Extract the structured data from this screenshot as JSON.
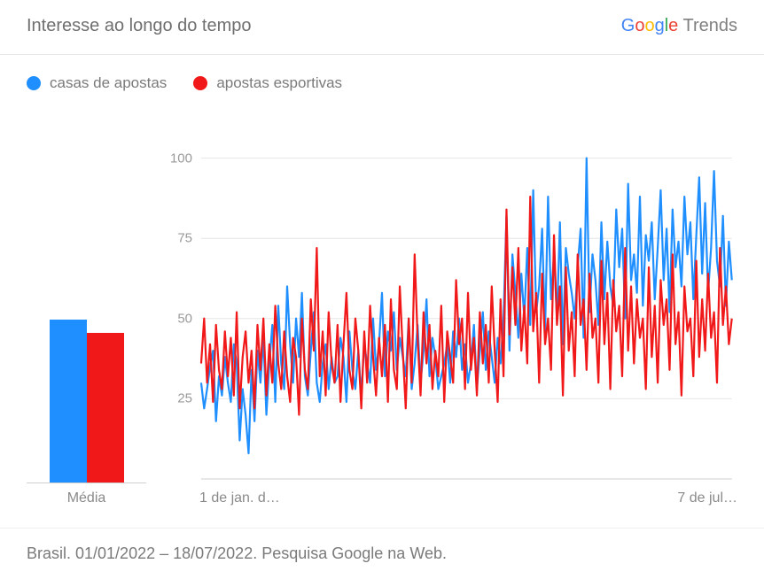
{
  "header": {
    "title": "Interesse ao longo do tempo",
    "brand_trends": "Trends"
  },
  "legend": {
    "items": [
      {
        "label": "casas de apostas",
        "color": "#1f8fff"
      },
      {
        "label": "apostas esportivas",
        "color": "#f01818"
      }
    ]
  },
  "avg_panel": {
    "label": "Média",
    "bars": [
      {
        "value": 49,
        "color": "#1f8fff"
      },
      {
        "value": 45,
        "color": "#f01818"
      }
    ],
    "scale_max": 100
  },
  "chart": {
    "type": "line",
    "ylim": [
      0,
      101
    ],
    "yticks": [
      25,
      50,
      75,
      100
    ],
    "ytick_fontsize": 15,
    "x_labels": [
      "1 de jan. d…",
      "7 de jul…"
    ],
    "x_label_fontsize": 16,
    "grid_color": "#e6e6e6",
    "background_color": "#ffffff",
    "line_width": 2.2,
    "series": [
      {
        "name": "casas de apostas",
        "color": "#1f8fff",
        "values": [
          30,
          22,
          28,
          35,
          40,
          18,
          32,
          26,
          38,
          30,
          24,
          42,
          36,
          12,
          28,
          20,
          8,
          34,
          18,
          40,
          30,
          44,
          20,
          36,
          48,
          24,
          54,
          36,
          28,
          60,
          42,
          30,
          50,
          38,
          58,
          32,
          26,
          40,
          52,
          30,
          24,
          36,
          42,
          28,
          38,
          30,
          32,
          44,
          38,
          24,
          46,
          34,
          28,
          40,
          26,
          42,
          36,
          30,
          50,
          34,
          42,
          58,
          32,
          46,
          40,
          52,
          34,
          44,
          38,
          32,
          50,
          28,
          36,
          48,
          30,
          40,
          56,
          32,
          44,
          38,
          28,
          32,
          36,
          42,
          30,
          46,
          38,
          50,
          34,
          42,
          30,
          36,
          48,
          28,
          40,
          52,
          34,
          46,
          38,
          30,
          44,
          36,
          50,
          82,
          40,
          70,
          58,
          44,
          64,
          50,
          72,
          48,
          90,
          52,
          60,
          78,
          46,
          88,
          56,
          70,
          50,
          80,
          42,
          72,
          64,
          58,
          50,
          66,
          78,
          44,
          100,
          52,
          70,
          62,
          48,
          80,
          56,
          74,
          60,
          54,
          84,
          66,
          78,
          50,
          92,
          62,
          70,
          58,
          88,
          54,
          76,
          68,
          80,
          56,
          72,
          90,
          62,
          78,
          52,
          84,
          66,
          74,
          60,
          88,
          70,
          80,
          56,
          76,
          94,
          64,
          86,
          58,
          72,
          96,
          68,
          60,
          82,
          54,
          74,
          62
        ]
      },
      {
        "name": "apostas esportivas",
        "color": "#f01818",
        "values": [
          36,
          50,
          30,
          42,
          24,
          48,
          34,
          28,
          46,
          32,
          44,
          26,
          52,
          22,
          38,
          46,
          30,
          40,
          22,
          48,
          34,
          50,
          26,
          42,
          30,
          54,
          36,
          28,
          46,
          32,
          24,
          44,
          38,
          20,
          50,
          34,
          28,
          56,
          40,
          72,
          32,
          46,
          26,
          52,
          36,
          30,
          48,
          24,
          42,
          58,
          34,
          28,
          50,
          40,
          22,
          46,
          30,
          54,
          38,
          26,
          44,
          32,
          48,
          24,
          56,
          34,
          28,
          60,
          40,
          22,
          50,
          30,
          70,
          44,
          26,
          52,
          36,
          48,
          28,
          40,
          32,
          54,
          24,
          46,
          38,
          30,
          62,
          42,
          50,
          28,
          58,
          34,
          44,
          26,
          52,
          36,
          48,
          30,
          60,
          40,
          24,
          56,
          32,
          84,
          45,
          66,
          48,
          72,
          40,
          54,
          36,
          88,
          46,
          58,
          30,
          64,
          42,
          50,
          34,
          76,
          48,
          60,
          26,
          66,
          40,
          52,
          32,
          70,
          48,
          56,
          34,
          64,
          44,
          50,
          30,
          68,
          42,
          58,
          28,
          62,
          46,
          54,
          32,
          72,
          40,
          60,
          36,
          56,
          44,
          50,
          28,
          66,
          38,
          54,
          30,
          62,
          48,
          56,
          34,
          70,
          42,
          52,
          26,
          60,
          46,
          50,
          32,
          68,
          38,
          56,
          40,
          64,
          44,
          52,
          30,
          72,
          48,
          60,
          42,
          50
        ]
      }
    ]
  },
  "footer": {
    "text": "Brasil. 01/01/2022 – 18/07/2022. Pesquisa Google na Web."
  }
}
